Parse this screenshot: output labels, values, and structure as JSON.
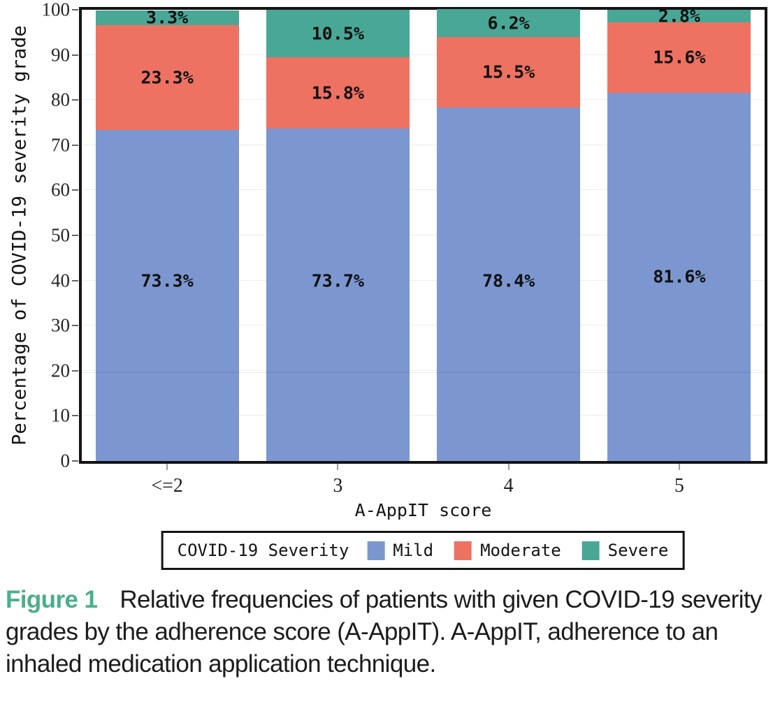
{
  "chart_data": {
    "type": "bar",
    "stacked": true,
    "categories": [
      "<=2",
      "3",
      "4",
      "5"
    ],
    "series": [
      {
        "name": "Mild",
        "color": "#7c96d0",
        "values": [
          73.3,
          73.7,
          78.4,
          81.6
        ]
      },
      {
        "name": "Moderate",
        "color": "#ee7262",
        "values": [
          23.3,
          15.8,
          15.5,
          15.6
        ]
      },
      {
        "name": "Severe",
        "color": "#49a795",
        "values": [
          3.3,
          10.5,
          6.2,
          2.8
        ]
      }
    ],
    "value_labels": [
      [
        "73.3%",
        "73.7%",
        "78.4%",
        "81.6%"
      ],
      [
        "23.3%",
        "15.8%",
        "15.5%",
        "15.6%"
      ],
      [
        "3.3%",
        "10.5%",
        "6.2%",
        "2.8%"
      ]
    ],
    "value_label_suffix": "%",
    "xlabel": "A-AppIT score",
    "ylabel": "Percentage of COVID-19 severity grade",
    "ylim": [
      0,
      100
    ],
    "yticks": [
      0,
      10,
      20,
      30,
      40,
      50,
      60,
      70,
      80,
      90,
      100
    ],
    "grid": true,
    "legend": {
      "title": "COVID-19 Severity",
      "position": "bottom",
      "entries": [
        "Mild",
        "Moderate",
        "Severe"
      ]
    }
  },
  "caption": {
    "label": "Figure 1",
    "text": "Relative frequencies of patients with given COVID-19 severity grades by the adherence score (A-AppIT). A-AppIT, adherence to an inhaled medication application technique."
  },
  "colors": {
    "mild": "#7c96d0",
    "moderate": "#ee7262",
    "severe": "#49a795",
    "figure_label_green": "#4bae8d",
    "frame": "#141414"
  }
}
